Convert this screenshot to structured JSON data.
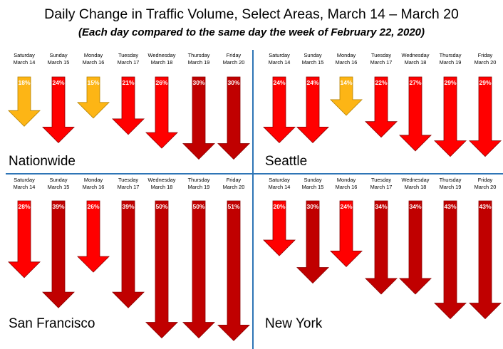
{
  "title": "Daily Change in Traffic Volume, Select Areas, March 14 – March 20",
  "subtitle": "(Each day compared to the same day the week of February 22, 2020)",
  "colors": {
    "under_20": "#fdb515",
    "20_to_29": "#ff0000",
    "30_plus": "#c00000",
    "divider": "#2e75b6"
  },
  "chart_data": [
    {
      "type": "bar",
      "name": "Nationwide",
      "categories": [
        [
          "Saturday",
          "March 14"
        ],
        [
          "Sunday",
          "March 15"
        ],
        [
          "Monday",
          "March 16"
        ],
        [
          "Tuesday",
          "March 17"
        ],
        [
          "Wednesday",
          "March 18"
        ],
        [
          "Thursday",
          "March 19"
        ],
        [
          "Friday",
          "March 20"
        ]
      ],
      "values": [
        -18,
        -24,
        -15,
        -21,
        -26,
        -30,
        -30
      ],
      "value_labels": [
        "18%",
        "24%",
        "15%",
        "21%",
        "26%",
        "30%",
        "30%"
      ]
    },
    {
      "type": "bar",
      "name": "Seattle",
      "categories": [
        [
          "Saturday",
          "March 14"
        ],
        [
          "Sunday",
          "March 15"
        ],
        [
          "Monday",
          "March 16"
        ],
        [
          "Tuesday",
          "March 17"
        ],
        [
          "Wednesday",
          "March 18"
        ],
        [
          "Thursday",
          "March 19"
        ],
        [
          "Friday",
          "March 20"
        ]
      ],
      "values": [
        -24,
        -24,
        -14,
        -22,
        -27,
        -29,
        -29
      ],
      "value_labels": [
        "24%",
        "24%",
        "14%",
        "22%",
        "27%",
        "29%",
        "29%"
      ]
    },
    {
      "type": "bar",
      "name": "San Francisco",
      "categories": [
        [
          "Saturday",
          "March 14"
        ],
        [
          "Sunday",
          "March 15"
        ],
        [
          "Monday",
          "March 16"
        ],
        [
          "Tuesday",
          "March 17"
        ],
        [
          "Wednesday",
          "March 18"
        ],
        [
          "Thursday",
          "March 19"
        ],
        [
          "Friday",
          "March 20"
        ]
      ],
      "values": [
        -28,
        -39,
        -26,
        -39,
        -50,
        -50,
        -51
      ],
      "value_labels": [
        "28%",
        "39%",
        "26%",
        "39%",
        "50%",
        "50%",
        "51%"
      ]
    },
    {
      "type": "bar",
      "name": "New York",
      "categories": [
        [
          "Saturday",
          "March 14"
        ],
        [
          "Sunday",
          "March 15"
        ],
        [
          "Monday",
          "March 16"
        ],
        [
          "Tuesday",
          "March 17"
        ],
        [
          "Wednesday",
          "March 18"
        ],
        [
          "Thursday",
          "March 19"
        ],
        [
          "Friday",
          "March 20"
        ]
      ],
      "values": [
        -20,
        -30,
        -24,
        -34,
        -34,
        -43,
        -43
      ],
      "value_labels": [
        "20%",
        "30%",
        "24%",
        "34%",
        "34%",
        "43%",
        "43%"
      ]
    }
  ]
}
